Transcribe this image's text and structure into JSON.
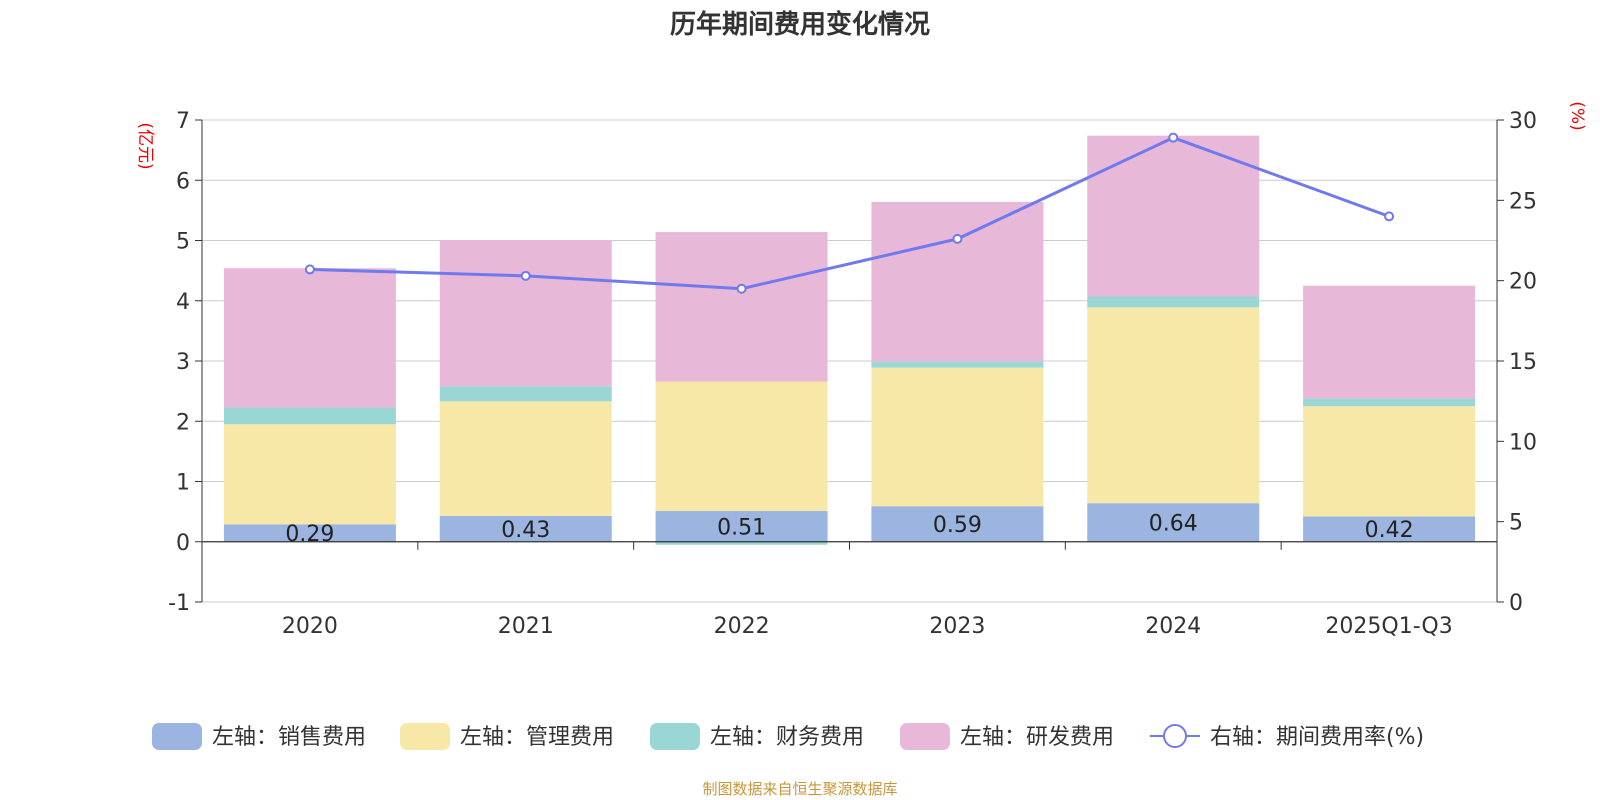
{
  "title": "历年期间费用变化情况",
  "source": "制图数据来自恒生聚源数据库",
  "chart_data": {
    "type": "bar",
    "stacked": true,
    "categories": [
      "2020",
      "2021",
      "2022",
      "2023",
      "2024",
      "2025Q1-Q3"
    ],
    "left_axis": {
      "unit_label": "(亿元)",
      "min": -1,
      "max": 7,
      "ticks": [
        -1,
        0,
        1,
        2,
        3,
        4,
        5,
        6,
        7
      ]
    },
    "right_axis": {
      "unit_label": "(%)",
      "min": 0,
      "max": 30,
      "ticks": [
        0,
        5,
        10,
        15,
        20,
        25,
        30
      ]
    },
    "series": [
      {
        "name": "左轴：销售费用",
        "axis": "left",
        "type": "bar",
        "color": "#9bb5e0",
        "values": [
          0.29,
          0.43,
          0.51,
          0.59,
          0.64,
          0.42
        ],
        "show_labels": true
      },
      {
        "name": "左轴：管理费用",
        "axis": "left",
        "type": "bar",
        "color": "#f8e8a8",
        "values": [
          1.66,
          1.9,
          2.15,
          2.3,
          3.25,
          1.83
        ]
      },
      {
        "name": "左轴：财务费用",
        "axis": "left",
        "type": "bar",
        "color": "#99d6d4",
        "values": [
          0.28,
          0.25,
          -0.05,
          0.1,
          0.18,
          0.13
        ]
      },
      {
        "name": "左轴：研发费用",
        "axis": "left",
        "type": "bar",
        "color": "#e8b8d9",
        "values": [
          2.31,
          2.42,
          2.48,
          2.65,
          2.67,
          1.87
        ]
      },
      {
        "name": "右轴：期间费用率(%)",
        "axis": "right",
        "type": "line",
        "color": "#7079ee",
        "values": [
          20.7,
          20.3,
          19.5,
          22.6,
          28.9,
          24.0
        ]
      }
    ],
    "axis_label_color": "#ee0000"
  }
}
